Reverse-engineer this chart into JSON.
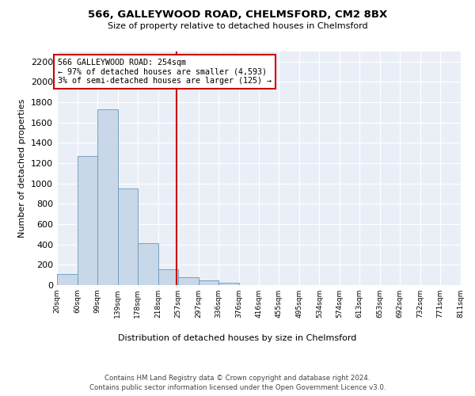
{
  "title1": "566, GALLEYWOOD ROAD, CHELMSFORD, CM2 8BX",
  "title2": "Size of property relative to detached houses in Chelmsford",
  "xlabel": "Distribution of detached houses by size in Chelmsford",
  "ylabel": "Number of detached properties",
  "bar_edges": [
    20,
    60,
    99,
    139,
    178,
    218,
    257,
    297,
    336,
    376,
    416,
    455,
    495,
    534,
    574,
    613,
    653,
    692,
    732,
    771,
    811
  ],
  "bar_heights": [
    110,
    1270,
    1730,
    950,
    415,
    155,
    80,
    48,
    25,
    0,
    0,
    0,
    0,
    0,
    0,
    0,
    0,
    0,
    0,
    0
  ],
  "bar_color": "#c8d8e8",
  "bar_edge_color": "#6699bb",
  "vline_x": 254,
  "vline_color": "#cc0000",
  "annotation_line1": "566 GALLEYWOOD ROAD: 254sqm",
  "annotation_line2": "← 97% of detached houses are smaller (4,593)",
  "annotation_line3": "3% of semi-detached houses are larger (125) →",
  "box_color": "#cc0000",
  "ylim": [
    0,
    2300
  ],
  "yticks": [
    0,
    200,
    400,
    600,
    800,
    1000,
    1200,
    1400,
    1600,
    1800,
    2000,
    2200
  ],
  "tick_labels": [
    "20sqm",
    "60sqm",
    "99sqm",
    "139sqm",
    "178sqm",
    "218sqm",
    "257sqm",
    "297sqm",
    "336sqm",
    "376sqm",
    "416sqm",
    "455sqm",
    "495sqm",
    "534sqm",
    "574sqm",
    "613sqm",
    "653sqm",
    "692sqm",
    "732sqm",
    "771sqm",
    "811sqm"
  ],
  "footer1": "Contains HM Land Registry data © Crown copyright and database right 2024.",
  "footer2": "Contains public sector information licensed under the Open Government Licence v3.0.",
  "plot_bg_color": "#eaeff7"
}
